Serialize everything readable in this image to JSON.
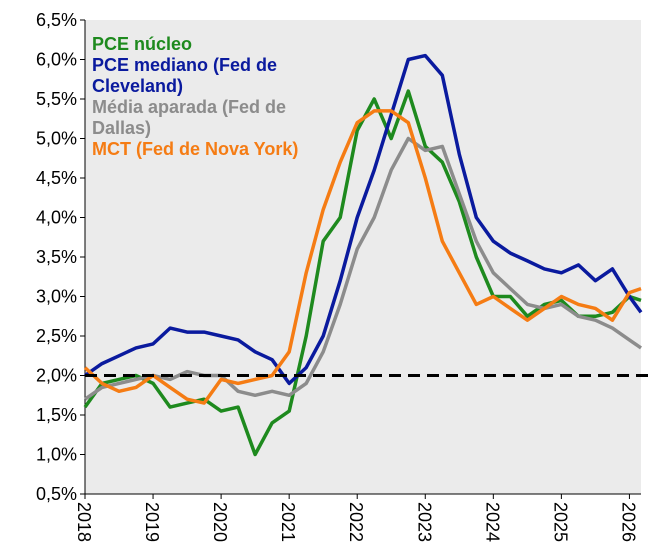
{
  "chart_data": {
    "type": "line",
    "x": [
      2018,
      2018.25,
      2018.5,
      2018.75,
      2019,
      2019.25,
      2019.5,
      2019.75,
      2020,
      2020.25,
      2020.5,
      2020.75,
      2021,
      2021.25,
      2021.5,
      2021.75,
      2022,
      2022.25,
      2022.5,
      2022.75,
      2023,
      2023.25,
      2023.5,
      2023.75,
      2024,
      2024.25,
      2024.5,
      2024.75,
      2025,
      2025.25,
      2025.5,
      2025.75,
      2026,
      2026.17
    ],
    "series": [
      {
        "name": "PCE núcleo",
        "color": "#1e8a1e",
        "values": [
          1.6,
          1.9,
          1.95,
          2.0,
          1.9,
          1.6,
          1.65,
          1.7,
          1.55,
          1.6,
          1.0,
          1.4,
          1.55,
          2.5,
          3.7,
          4.0,
          5.1,
          5.5,
          5.0,
          5.6,
          4.9,
          4.7,
          4.2,
          3.5,
          3.0,
          3.0,
          2.75,
          2.9,
          2.95,
          2.75,
          2.75,
          2.8,
          3.0,
          2.95
        ]
      },
      {
        "name": "PCE mediano (Fed de Cleveland)",
        "color": "#0a1a9e",
        "values": [
          2.0,
          2.15,
          2.25,
          2.35,
          2.4,
          2.6,
          2.55,
          2.55,
          2.5,
          2.45,
          2.3,
          2.2,
          1.9,
          2.1,
          2.5,
          3.2,
          4.0,
          4.6,
          5.3,
          6.0,
          6.05,
          5.8,
          4.8,
          4.0,
          3.7,
          3.55,
          3.45,
          3.35,
          3.3,
          3.4,
          3.2,
          3.35,
          3.0,
          2.8
        ]
      },
      {
        "name": "Média aparada (Fed de Dallas)",
        "color": "#8c8c8c",
        "values": [
          1.7,
          1.85,
          1.9,
          1.95,
          2.0,
          1.95,
          2.05,
          2.0,
          2.0,
          1.8,
          1.75,
          1.8,
          1.75,
          1.9,
          2.3,
          2.9,
          3.6,
          4.0,
          4.6,
          5.0,
          4.85,
          4.9,
          4.3,
          3.7,
          3.3,
          3.1,
          2.9,
          2.85,
          2.9,
          2.75,
          2.7,
          2.6,
          2.45,
          2.35
        ]
      },
      {
        "name": "MCT (Fed de Nova York)",
        "color": "#f57c14",
        "values": [
          2.1,
          1.9,
          1.8,
          1.85,
          2.0,
          1.85,
          1.7,
          1.65,
          1.95,
          1.9,
          1.95,
          2.0,
          2.3,
          3.3,
          4.1,
          4.7,
          5.2,
          5.35,
          5.35,
          5.2,
          4.5,
          3.7,
          3.3,
          2.9,
          3.0,
          2.85,
          2.7,
          2.85,
          3.0,
          2.9,
          2.85,
          2.7,
          3.05,
          3.1
        ]
      }
    ],
    "xlim": [
      2018,
      2026.17
    ],
    "xticks": [
      2018,
      2019,
      2020,
      2021,
      2022,
      2023,
      2024,
      2025,
      2026
    ],
    "ylim": [
      0.5,
      6.5
    ],
    "yticks": [
      {
        "value": 0.5,
        "label": "0,5%"
      },
      {
        "value": 1.0,
        "label": "1,0%"
      },
      {
        "value": 1.5,
        "label": "1,5%"
      },
      {
        "value": 2.0,
        "label": "2,0%"
      },
      {
        "value": 2.5,
        "label": "2,5%"
      },
      {
        "value": 3.0,
        "label": "3,0%"
      },
      {
        "value": 3.5,
        "label": "3,5%"
      },
      {
        "value": 4.0,
        "label": "4,0%"
      },
      {
        "value": 4.5,
        "label": "4,5%"
      },
      {
        "value": 5.0,
        "label": "5,0%"
      },
      {
        "value": 5.5,
        "label": "5,5%"
      },
      {
        "value": 6.0,
        "label": "6,0%"
      },
      {
        "value": 6.5,
        "label": "6,5%"
      }
    ],
    "reference_line": 2.0,
    "legend": "top-left"
  }
}
